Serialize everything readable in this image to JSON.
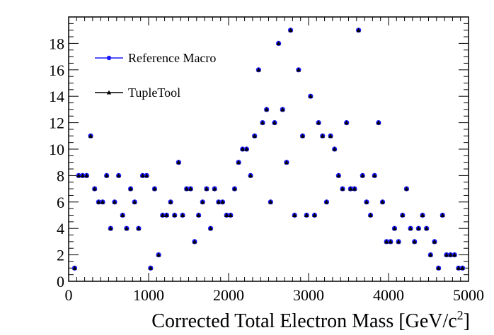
{
  "chart_data": {
    "type": "scatter",
    "title": "",
    "xlabel": "Corrected Total Electron Mass [GeV/c",
    "xlabel_sup": "2",
    "xlabel_end": "]",
    "ylabel": "",
    "xlim": [
      0,
      5000
    ],
    "ylim": [
      0,
      20
    ],
    "x_ticks": [
      "0",
      "1000",
      "2000",
      "3000",
      "4000",
      "5000"
    ],
    "y_ticks": [
      "0",
      "2",
      "4",
      "6",
      "8",
      "10",
      "12",
      "14",
      "16",
      "18"
    ],
    "grid": false,
    "legend_position": "top-left",
    "series": [
      {
        "name": "Reference Macro",
        "color": "#1a1aff",
        "marker": "circle",
        "x": [
          75,
          125,
          175,
          225,
          275,
          325,
          375,
          425,
          475,
          525,
          575,
          625,
          675,
          725,
          775,
          825,
          875,
          925,
          975,
          1025,
          1075,
          1125,
          1175,
          1225,
          1275,
          1325,
          1375,
          1425,
          1475,
          1525,
          1575,
          1625,
          1675,
          1725,
          1775,
          1825,
          1875,
          1925,
          1975,
          2025,
          2075,
          2125,
          2175,
          2225,
          2275,
          2325,
          2375,
          2425,
          2475,
          2525,
          2575,
          2625,
          2675,
          2725,
          2775,
          2825,
          2875,
          2925,
          2975,
          3025,
          3075,
          3125,
          3175,
          3225,
          3275,
          3325,
          3375,
          3425,
          3475,
          3525,
          3575,
          3625,
          3675,
          3725,
          3775,
          3825,
          3875,
          3925,
          3975,
          4025,
          4075,
          4125,
          4175,
          4225,
          4275,
          4325,
          4375,
          4425,
          4475,
          4525,
          4575,
          4625,
          4675,
          4725,
          4775,
          4825,
          4875,
          4925
        ],
        "y": [
          1,
          8,
          8,
          8,
          11,
          7,
          6,
          6,
          8,
          4,
          6,
          8,
          5,
          4,
          7,
          6,
          4,
          8,
          8,
          1,
          7,
          2,
          5,
          5,
          6,
          5,
          9,
          5,
          7,
          7,
          3,
          5,
          6,
          7,
          4,
          7,
          6,
          6,
          5,
          5,
          7,
          9,
          10,
          10,
          8,
          11,
          16,
          12,
          13,
          6,
          12,
          18,
          13,
          9,
          19,
          5,
          16,
          11,
          5,
          14,
          5,
          12,
          11,
          6,
          11,
          10,
          8,
          7,
          12,
          7,
          7,
          19,
          8,
          6,
          5,
          8,
          12,
          6,
          3,
          3,
          4,
          3,
          5,
          7,
          4,
          3,
          4,
          5,
          4,
          2,
          3,
          1,
          5,
          2,
          2,
          2,
          1,
          1
        ]
      },
      {
        "name": "TupleTool",
        "color": "#000000",
        "marker": "triangle",
        "x": [
          75,
          125,
          175,
          225,
          275,
          325,
          375,
          425,
          475,
          525,
          575,
          625,
          675,
          725,
          775,
          825,
          875,
          925,
          975,
          1025,
          1075,
          1125,
          1175,
          1225,
          1275,
          1325,
          1375,
          1425,
          1475,
          1525,
          1575,
          1625,
          1675,
          1725,
          1775,
          1825,
          1875,
          1925,
          1975,
          2025,
          2075,
          2125,
          2175,
          2225,
          2275,
          2325,
          2375,
          2425,
          2475,
          2525,
          2575,
          2625,
          2675,
          2725,
          2775,
          2825,
          2875,
          2925,
          2975,
          3025,
          3075,
          3125,
          3175,
          3225,
          3275,
          3325,
          3375,
          3425,
          3475,
          3525,
          3575,
          3625,
          3675,
          3725,
          3775,
          3825,
          3875,
          3925,
          3975,
          4025,
          4075,
          4125,
          4175,
          4225,
          4275,
          4325,
          4375,
          4425,
          4475,
          4525,
          4575,
          4625,
          4675,
          4725,
          4775,
          4825,
          4875,
          4925
        ],
        "y": [
          1,
          8,
          8,
          8,
          11,
          7,
          6,
          6,
          8,
          4,
          6,
          8,
          5,
          4,
          7,
          6,
          4,
          8,
          8,
          1,
          7,
          2,
          5,
          5,
          6,
          5,
          9,
          5,
          7,
          7,
          3,
          5,
          6,
          7,
          4,
          7,
          6,
          6,
          5,
          5,
          7,
          9,
          10,
          10,
          8,
          11,
          16,
          12,
          13,
          6,
          12,
          18,
          13,
          9,
          19,
          5,
          16,
          11,
          5,
          14,
          5,
          12,
          11,
          6,
          11,
          10,
          8,
          7,
          12,
          7,
          7,
          19,
          8,
          6,
          5,
          8,
          12,
          6,
          3,
          3,
          4,
          3,
          5,
          7,
          4,
          3,
          4,
          5,
          4,
          2,
          3,
          1,
          5,
          2,
          2,
          2,
          1,
          1
        ]
      }
    ]
  }
}
